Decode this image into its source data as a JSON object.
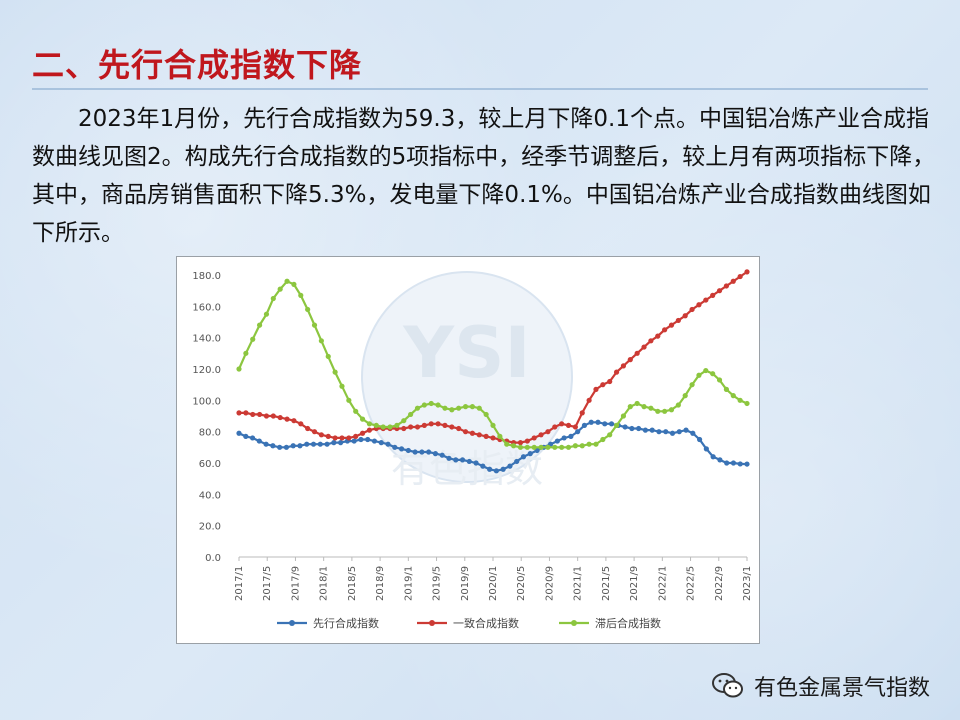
{
  "slide": {
    "title": "二、先行合成指数下降",
    "paragraph": "2023年1月份，先行合成指数为59.3，较上月下降0.1个点。中国铝冶炼产业合成指数曲线见图2。构成先行合成指数的5项指标中，经季节调整后，较上月有两项指标下降，其中，商品房销售面积下降5.3%，发电量下降0.1%。中国铝冶炼产业合成指数曲线图如下所示。"
  },
  "footer": {
    "brand": "有色金属景气指数",
    "icon": "wechat-icon"
  },
  "watermark": {
    "logo_text": "YSI",
    "text": "有色指数"
  },
  "chart_data": {
    "type": "line",
    "ylim": [
      0,
      180
    ],
    "yticks": [
      "180.0",
      "160.0",
      "140.0",
      "120.0",
      "100.0",
      "80.0",
      "60.0",
      "40.0",
      "20.0",
      "0.0"
    ],
    "xlabels": [
      "2017/1",
      "2017/5",
      "2017/9",
      "2018/1",
      "2018/5",
      "2018/9",
      "2019/1",
      "2019/5",
      "2019/9",
      "2020/1",
      "2020/5",
      "2020/9",
      "2021/1",
      "2021/5",
      "2021/9",
      "2022/1",
      "2022/5",
      "2022/9",
      "2023/1"
    ],
    "x_start": "2017/1",
    "x_end": "2023/1",
    "grid": false,
    "legend_position": "bottom",
    "series": [
      {
        "name": "先行合成指数",
        "color": "#3a73b5",
        "values": [
          79,
          77,
          76,
          74,
          72,
          71,
          70,
          70,
          71,
          71,
          72,
          72,
          72,
          72,
          73,
          73,
          74,
          74,
          75,
          75,
          74,
          73,
          72,
          70,
          69,
          68,
          67,
          67,
          67,
          66,
          65,
          63,
          62,
          62,
          61,
          60,
          58,
          56,
          55,
          56,
          58,
          61,
          64,
          66,
          68,
          70,
          72,
          74,
          76,
          77,
          80,
          84,
          86,
          86,
          85,
          85,
          84,
          83,
          82,
          82,
          81,
          81,
          80,
          80,
          79,
          80,
          81,
          79,
          75,
          69,
          64,
          62,
          60,
          60,
          59.4,
          59.3
        ]
      },
      {
        "name": "一致合成指数",
        "color": "#cc3a34",
        "values": [
          92,
          92,
          91,
          91,
          90,
          90,
          89,
          88,
          87,
          85,
          82,
          80,
          78,
          77,
          76,
          76,
          76,
          77,
          79,
          81,
          82,
          82,
          82,
          82,
          82,
          83,
          83,
          84,
          85,
          85,
          84,
          83,
          82,
          80,
          79,
          78,
          77,
          76,
          75,
          74,
          73,
          73,
          74,
          76,
          78,
          80,
          83,
          85,
          84,
          83,
          92,
          100,
          107,
          110,
          112,
          118,
          122,
          126,
          130,
          134,
          138,
          141,
          145,
          148,
          151,
          154,
          158,
          161,
          164,
          167,
          170,
          173,
          176,
          179,
          182
        ]
      },
      {
        "name": "滞后合成指数",
        "color": "#8cc63f",
        "values": [
          120,
          130,
          139,
          148,
          155,
          165,
          171,
          176,
          174,
          167,
          158,
          148,
          138,
          128,
          118,
          109,
          100,
          93,
          88,
          85,
          84,
          83,
          83,
          84,
          87,
          91,
          95,
          97,
          98,
          97,
          95,
          94,
          95,
          96,
          96,
          95,
          91,
          84,
          77,
          72,
          71,
          70,
          70,
          70,
          70,
          70,
          70,
          70,
          70,
          71,
          71,
          72,
          72,
          75,
          78,
          84,
          90,
          96,
          98,
          96,
          95,
          93,
          93,
          94,
          97,
          103,
          110,
          116,
          119,
          117,
          113,
          107,
          103,
          100,
          98
        ]
      }
    ]
  }
}
